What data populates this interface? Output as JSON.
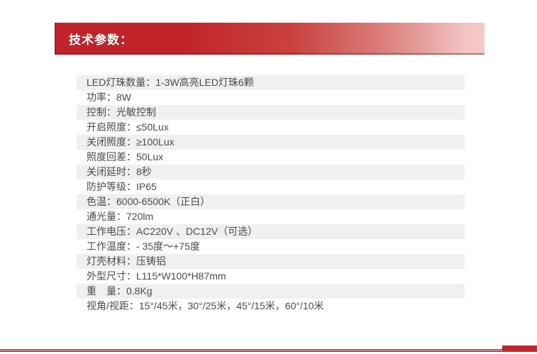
{
  "colors": {
    "accent_red": "#c0272d",
    "header_gradient_start": "#c0242a",
    "header_gradient_end": "#f4cbc9",
    "row_alt_background": "#f0f0f0",
    "row_text": "#4b4b4b",
    "bottom_rule": "#96262a"
  },
  "header": {
    "title": "技术参数："
  },
  "specs": {
    "rows": [
      {
        "text": "LED灯珠数量：1-3W高亮LED灯珠6颗"
      },
      {
        "text": "功率：8W"
      },
      {
        "text": "控制：光敏控制"
      },
      {
        "text": "开启照度：≤50Lux"
      },
      {
        "text": "关闭照度：≥100Lux"
      },
      {
        "text": "照度回差：50Lux"
      },
      {
        "text": "关闭延时：8秒"
      },
      {
        "text": "防护等级：IP65"
      },
      {
        "text": "色温：6000-6500K（正白）"
      },
      {
        "text": "通光量：720lm"
      },
      {
        "text": "工作电压：AC220V 、DC12V（可选）"
      },
      {
        "text": "工作温度：- 35度～+75度"
      },
      {
        "text": "灯壳材料：压铸铝"
      },
      {
        "text": "外型尺寸：L115*W100*H87mm"
      },
      {
        "text": "重　量：0.8Kg"
      },
      {
        "text": "视角/视距：15°/45米，30°/25米，45°/15米，60°/10米"
      }
    ]
  }
}
